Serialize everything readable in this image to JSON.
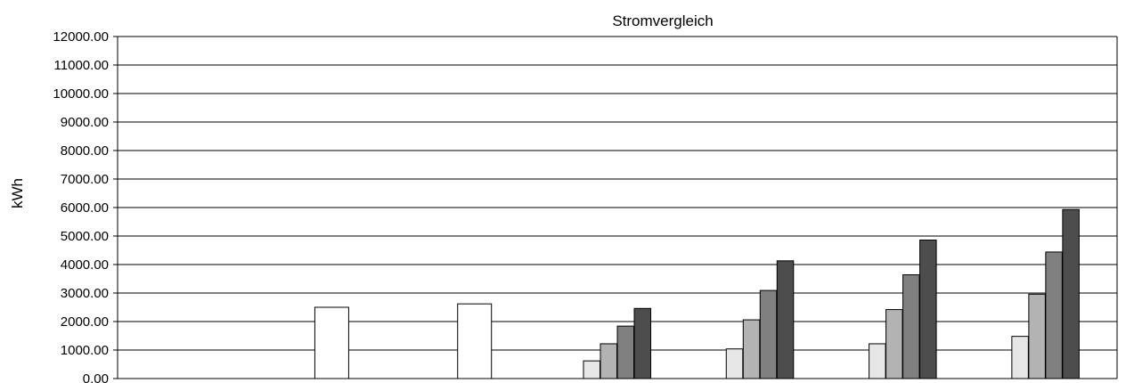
{
  "chart_data": {
    "type": "bar",
    "title": "Stromvergleich",
    "xlabel": "",
    "ylabel": "kWh",
    "ylim": [
      0,
      12000
    ],
    "yticks": [
      "0.00",
      "1000.00",
      "2000.00",
      "3000.00",
      "4000.00",
      "5000.00",
      "6000.00",
      "7000.00",
      "8000.00",
      "9000.00",
      "10000.00",
      "11000.00",
      "12000.00"
    ],
    "grid": true,
    "legend": "none",
    "categories": [
      "",
      "",
      "",
      "",
      "",
      "",
      ""
    ],
    "series": [
      {
        "color": "#ffffff",
        "values": [
          null,
          2500,
          2620,
          null,
          null,
          null,
          null
        ]
      },
      {
        "color": "#e6e6e6",
        "values": [
          null,
          null,
          null,
          620,
          1040,
          1220,
          1480
        ]
      },
      {
        "color": "#b3b3b3",
        "values": [
          null,
          null,
          null,
          1220,
          2060,
          2420,
          2960
        ]
      },
      {
        "color": "#808080",
        "values": [
          null,
          null,
          null,
          1840,
          3090,
          3640,
          4440
        ]
      },
      {
        "color": "#4d4d4d",
        "values": [
          null,
          null,
          null,
          2460,
          4130,
          4860,
          5930
        ]
      }
    ]
  }
}
